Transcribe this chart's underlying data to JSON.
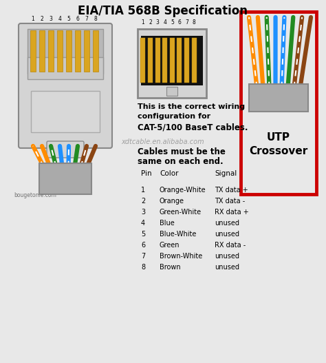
{
  "title": "EIA/TIA 568B Specification",
  "bg_color": "#e8e8e8",
  "text_color": "#000000",
  "pin_numbers": [
    "1",
    "2",
    "3",
    "4",
    "5",
    "6",
    "7",
    "8"
  ],
  "pin_colors": [
    {
      "name": "Orange-White",
      "signal": "TX data +",
      "base": "#FF8C00",
      "stripe": true
    },
    {
      "name": "Orange",
      "signal": "TX data -",
      "base": "#FF8C00",
      "stripe": false
    },
    {
      "name": "Green-White",
      "signal": "RX data +",
      "base": "#228B22",
      "stripe": true
    },
    {
      "name": "Blue",
      "signal": "unused",
      "base": "#1E90FF",
      "stripe": false
    },
    {
      "name": "Blue-White",
      "signal": "unused",
      "base": "#1E90FF",
      "stripe": true
    },
    {
      "name": "Green",
      "signal": "RX data -",
      "base": "#228B22",
      "stripe": false
    },
    {
      "name": "Brown-White",
      "signal": "unused",
      "base": "#8B4513",
      "stripe": true
    },
    {
      "name": "Brown",
      "signal": "unused",
      "base": "#8B4513",
      "stripe": false
    }
  ],
  "watermark": "xdtcable.en.alibaba.com",
  "watermark2": "bougetonie.com",
  "info_text1": "This is the correct wiring",
  "info_text2": "configuration for",
  "info_text3": "CAT-5/100 BaseT cables.",
  "info_text4": "Cables must be the",
  "info_text5": "same on each end.",
  "utp_label1": "UTP",
  "utp_label2": "Crossover",
  "red_box_color": "#cc0000",
  "connector_color": "#d4d4d4",
  "connector_dark": "#111111",
  "pin_gold": "#DAA520",
  "sheath_color": "#aaaaaa"
}
